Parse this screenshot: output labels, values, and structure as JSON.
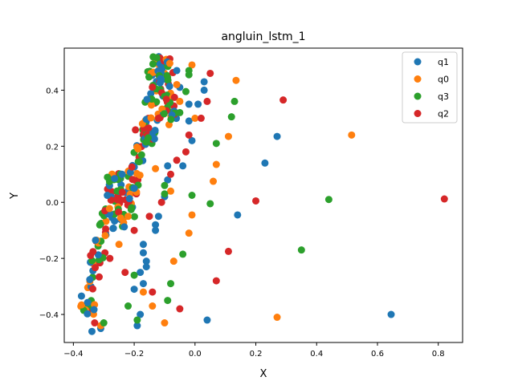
{
  "chart_data": {
    "type": "scatter",
    "title": "angluin_lstm_1",
    "xlabel": "X",
    "ylabel": "Y",
    "xlim": [
      -0.43,
      0.88
    ],
    "ylim": [
      -0.5,
      0.55
    ],
    "xticks": [
      -0.4,
      -0.2,
      0.0,
      0.2,
      0.4,
      0.6,
      0.8
    ],
    "xtick_labels": [
      "−0.4",
      "−0.2",
      "0.0",
      "0.2",
      "0.4",
      "0.6",
      "0.8"
    ],
    "yticks": [
      -0.4,
      -0.2,
      0.0,
      0.2,
      0.4
    ],
    "ytick_labels": [
      "−0.4",
      "−0.2",
      "0.0",
      "0.2",
      "0.4"
    ],
    "grid": false,
    "legend": "top-right",
    "series": [
      {
        "name": "q1",
        "color": "#1f77b4",
        "points": [
          [
            -0.31,
            -0.45
          ],
          [
            -0.19,
            -0.44
          ],
          [
            0.04,
            -0.42
          ],
          [
            0.645,
            -0.4
          ],
          [
            -0.18,
            -0.4
          ],
          [
            -0.2,
            -0.31
          ],
          [
            -0.17,
            -0.29
          ],
          [
            -0.18,
            -0.25
          ],
          [
            -0.16,
            -0.23
          ],
          [
            -0.16,
            -0.21
          ],
          [
            -0.17,
            -0.18
          ],
          [
            -0.17,
            -0.15
          ],
          [
            -0.13,
            -0.1
          ],
          [
            -0.13,
            -0.08
          ],
          [
            -0.12,
            -0.05
          ],
          [
            -0.1,
            0.02
          ],
          [
            -0.09,
            0.08
          ],
          [
            -0.09,
            0.13
          ],
          [
            -0.01,
            0.22
          ],
          [
            -0.02,
            0.29
          ],
          [
            -0.02,
            0.35
          ],
          [
            -0.05,
            0.41
          ],
          [
            0.03,
            0.43
          ],
          [
            0.03,
            0.4
          ],
          [
            0.01,
            0.35
          ],
          [
            0.14,
            -0.045
          ],
          [
            0.23,
            0.14
          ],
          [
            0.27,
            0.235
          ],
          [
            -0.24,
            0.1
          ],
          [
            -0.2,
            0.05
          ],
          [
            -0.06,
            0.47
          ],
          [
            -0.04,
            0.13
          ]
        ]
      },
      {
        "name": "q0",
        "color": "#ff7f0e",
        "points": [
          [
            -0.31,
            -0.44
          ],
          [
            -0.1,
            -0.43
          ],
          [
            0.27,
            -0.41
          ],
          [
            -0.14,
            -0.37
          ],
          [
            -0.17,
            -0.32
          ],
          [
            -0.07,
            -0.21
          ],
          [
            -0.02,
            -0.11
          ],
          [
            -0.01,
            -0.045
          ],
          [
            -0.08,
            0.04
          ],
          [
            0.06,
            0.075
          ],
          [
            0.07,
            0.135
          ],
          [
            0.11,
            0.235
          ],
          [
            0.515,
            0.24
          ],
          [
            0.135,
            0.435
          ],
          [
            0.0,
            0.3
          ],
          [
            -0.01,
            0.49
          ],
          [
            -0.06,
            0.42
          ],
          [
            -0.05,
            0.36
          ],
          [
            -0.13,
            0.12
          ],
          [
            -0.22,
            -0.05
          ],
          [
            -0.25,
            -0.15
          ]
        ]
      },
      {
        "name": "q3",
        "color": "#2ca02c",
        "points": [
          [
            -0.3,
            -0.43
          ],
          [
            -0.19,
            -0.42
          ],
          [
            -0.09,
            -0.35
          ],
          [
            -0.08,
            -0.29
          ],
          [
            -0.04,
            -0.185
          ],
          [
            0.05,
            -0.005
          ],
          [
            0.35,
            -0.17
          ],
          [
            0.44,
            0.01
          ],
          [
            -0.01,
            0.025
          ],
          [
            0.07,
            0.21
          ],
          [
            0.12,
            0.305
          ],
          [
            0.13,
            0.36
          ],
          [
            -0.03,
            0.395
          ],
          [
            -0.02,
            0.47
          ],
          [
            -0.02,
            0.455
          ],
          [
            -0.05,
            0.32
          ],
          [
            -0.1,
            0.06
          ],
          [
            -0.1,
            0.03
          ],
          [
            -0.2,
            -0.26
          ],
          [
            -0.22,
            -0.37
          ]
        ]
      },
      {
        "name": "q2",
        "color": "#d62728",
        "points": [
          [
            -0.33,
            -0.43
          ],
          [
            -0.14,
            -0.32
          ],
          [
            -0.05,
            -0.38
          ],
          [
            0.07,
            -0.28
          ],
          [
            0.11,
            -0.175
          ],
          [
            0.2,
            0.005
          ],
          [
            0.82,
            0.012
          ],
          [
            0.29,
            0.365
          ],
          [
            0.05,
            0.46
          ],
          [
            0.04,
            0.36
          ],
          [
            0.02,
            0.3
          ],
          [
            -0.02,
            0.24
          ],
          [
            -0.03,
            0.18
          ],
          [
            -0.06,
            0.15
          ],
          [
            -0.08,
            0.1
          ],
          [
            -0.11,
            0.0
          ],
          [
            -0.15,
            -0.05
          ],
          [
            -0.2,
            -0.1
          ],
          [
            -0.28,
            -0.2
          ],
          [
            -0.23,
            -0.25
          ],
          [
            -0.12,
            0.3
          ]
        ]
      }
    ],
    "dense_band": {
      "description_points": [
        [
          -0.36,
          -0.45
        ],
        [
          -0.35,
          -0.35
        ],
        [
          -0.33,
          -0.22
        ],
        [
          -0.31,
          -0.12
        ],
        [
          -0.28,
          -0.05
        ],
        [
          -0.27,
          0.03
        ],
        [
          -0.26,
          0.1
        ],
        [
          -0.23,
          0.0
        ],
        [
          -0.22,
          -0.08
        ],
        [
          -0.2,
          0.1
        ],
        [
          -0.18,
          0.18
        ],
        [
          -0.17,
          0.28
        ],
        [
          -0.14,
          0.22
        ],
        [
          -0.14,
          0.36
        ],
        [
          -0.13,
          0.45
        ],
        [
          -0.12,
          0.52
        ],
        [
          -0.1,
          0.48
        ],
        [
          -0.09,
          0.4
        ],
        [
          -0.08,
          0.33
        ],
        [
          -0.1,
          0.28
        ]
      ]
    }
  },
  "legend_labels": [
    "q1",
    "q0",
    "q3",
    "q2"
  ]
}
